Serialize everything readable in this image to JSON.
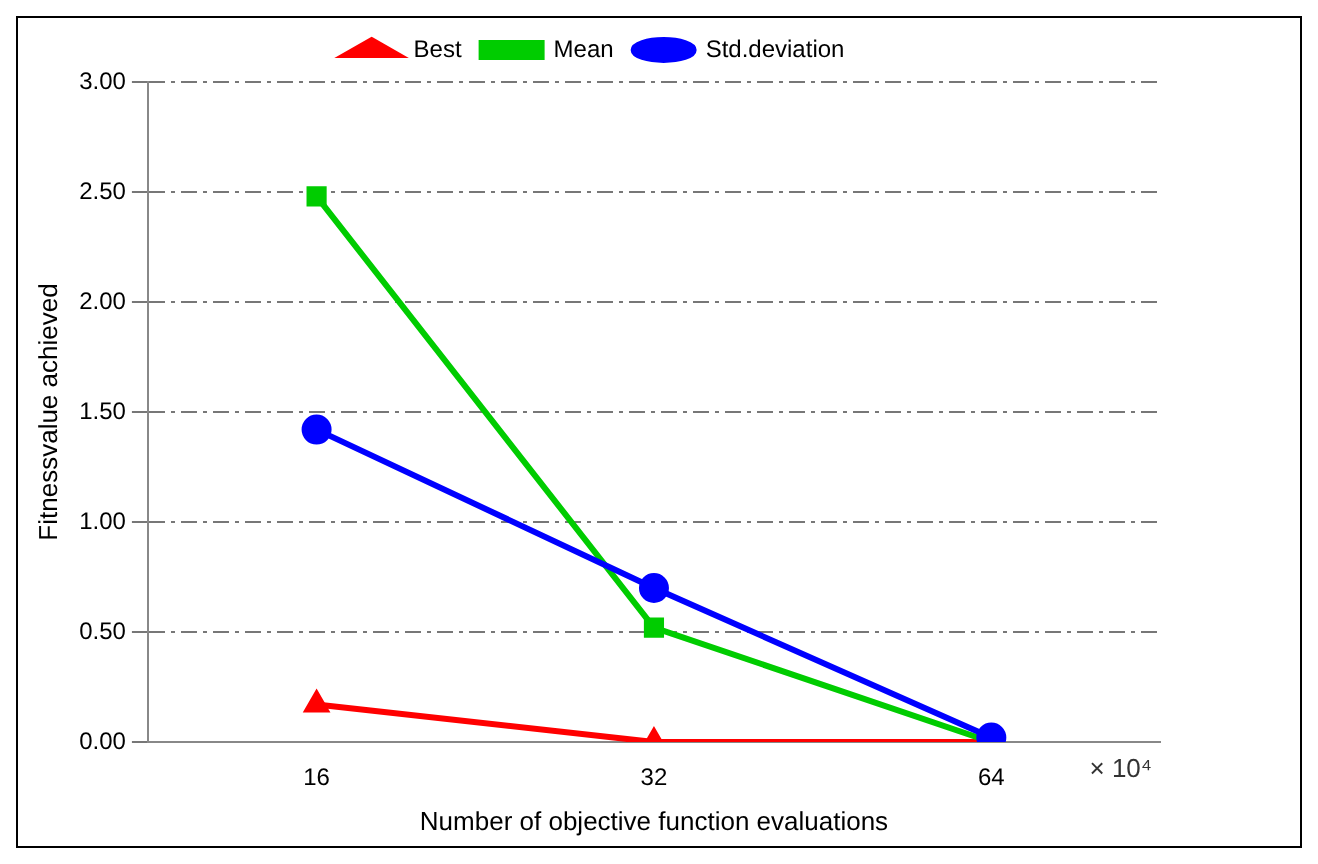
{
  "chart_data": {
    "type": "line",
    "xlabel": "Number of objective function evaluations",
    "ylabel": "Fitnessvalue achieved",
    "categories": [
      "16",
      "32",
      "64"
    ],
    "series": [
      {
        "name": "Best",
        "color": "#ff0000",
        "marker": "triangle",
        "values": [
          0.17,
          0.0,
          0.0
        ]
      },
      {
        "name": "Mean",
        "color": "#00cc00",
        "marker": "square",
        "values": [
          2.48,
          0.52,
          0.0
        ]
      },
      {
        "name": "Std.deviation",
        "color": "#0000ff",
        "marker": "circle",
        "values": [
          1.42,
          0.7,
          0.02
        ]
      }
    ],
    "ylim": [
      0,
      3
    ],
    "yticks": [
      {
        "value": 0,
        "label": "0.00"
      },
      {
        "value": 0.5,
        "label": "0.50"
      },
      {
        "value": 1,
        "label": "1.00"
      },
      {
        "value": 1.5,
        "label": "1.50"
      },
      {
        "value": 2,
        "label": "2.00"
      },
      {
        "value": 2.5,
        "label": "2.50"
      },
      {
        "value": 3,
        "label": "3.00"
      }
    ],
    "grid": "y",
    "legend": "top",
    "annotations": [
      "× 10⁴"
    ]
  }
}
